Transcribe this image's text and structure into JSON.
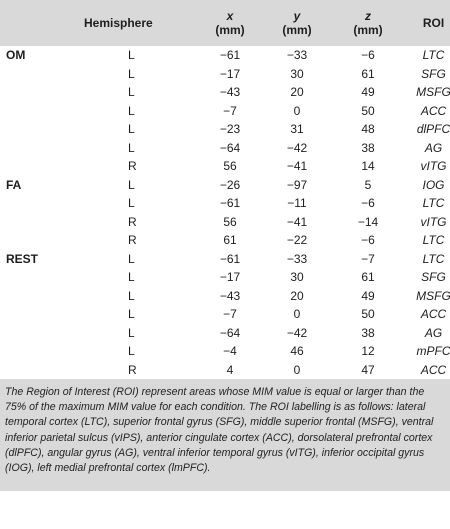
{
  "table": {
    "headers": {
      "condition": "",
      "hemisphere": "Hemisphere",
      "x": "x",
      "y": "y",
      "z": "z",
      "unit": "(mm)",
      "roi": "ROI"
    },
    "groups": [
      {
        "condition": "OM",
        "rows": [
          {
            "hemisphere": "L",
            "x": "−61",
            "y": "−33",
            "z": "−6",
            "roi": "LTC"
          },
          {
            "hemisphere": "L",
            "x": "−17",
            "y": "30",
            "z": "61",
            "roi": "SFG"
          },
          {
            "hemisphere": "L",
            "x": "−43",
            "y": "20",
            "z": "49",
            "roi": "MSFG"
          },
          {
            "hemisphere": "L",
            "x": "−7",
            "y": "0",
            "z": "50",
            "roi": "ACC"
          },
          {
            "hemisphere": "L",
            "x": "−23",
            "y": "31",
            "z": "48",
            "roi": "dlPFC"
          },
          {
            "hemisphere": "L",
            "x": "−64",
            "y": "−42",
            "z": "38",
            "roi": "AG"
          },
          {
            "hemisphere": "R",
            "x": "56",
            "y": "−41",
            "z": "14",
            "roi": "vITG"
          }
        ]
      },
      {
        "condition": "FA",
        "rows": [
          {
            "hemisphere": "L",
            "x": "−26",
            "y": "−97",
            "z": "5",
            "roi": "IOG"
          },
          {
            "hemisphere": "L",
            "x": "−61",
            "y": "−11",
            "z": "−6",
            "roi": "LTC"
          },
          {
            "hemisphere": "R",
            "x": "56",
            "y": "−41",
            "z": "−14",
            "roi": "vITG"
          },
          {
            "hemisphere": "R",
            "x": "61",
            "y": "−22",
            "z": "−6",
            "roi": "LTC"
          }
        ]
      },
      {
        "condition": "REST",
        "rows": [
          {
            "hemisphere": "L",
            "x": "−61",
            "y": "−33",
            "z": "−7",
            "roi": "LTC"
          },
          {
            "hemisphere": "L",
            "x": "−17",
            "y": "30",
            "z": "61",
            "roi": "SFG"
          },
          {
            "hemisphere": "L",
            "x": "−43",
            "y": "20",
            "z": "49",
            "roi": "MSFG"
          },
          {
            "hemisphere": "L",
            "x": "−7",
            "y": "0",
            "z": "50",
            "roi": "ACC"
          },
          {
            "hemisphere": "L",
            "x": "−64",
            "y": "−42",
            "z": "38",
            "roi": "AG"
          },
          {
            "hemisphere": "L",
            "x": "−4",
            "y": "46",
            "z": "12",
            "roi": "mPFC"
          },
          {
            "hemisphere": "R",
            "x": "4",
            "y": "0",
            "z": "47",
            "roi": "ACC"
          }
        ]
      }
    ]
  },
  "footnote": "The Region of Interest (ROI) represent areas whose MIM value is equal or larger than the 75% of the maximum MIM value for each condition. The ROI labelling is as follows: lateral temporal cortex (LTC), superior frontal gyrus (SFG), middle superior frontal (MSFG), ventral inferior parietal sulcus (vIPS), anterior cingulate cortex (ACC), dorsolateral prefrontal cortex (dlPFC), angular gyrus (AG), ventral inferior temporal gyrus (vITG), inferior occipital gyrus (IOG), left medial prefrontal cortex (lmPFC)."
}
